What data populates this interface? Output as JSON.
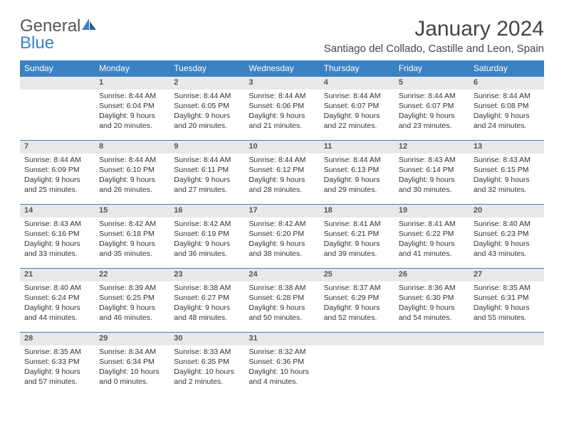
{
  "logo": {
    "part1": "General",
    "part2": "Blue"
  },
  "title": "January 2024",
  "location": "Santiago del Collado, Castille and Leon, Spain",
  "colors": {
    "header_bg": "#3b82c4",
    "header_text": "#ffffff",
    "daynum_bg": "#e8e8e8",
    "daynum_border": "#3b82c4",
    "text": "#333333",
    "logo_gray": "#555555",
    "logo_blue": "#3b82c4"
  },
  "typography": {
    "title_fontsize": 30,
    "location_fontsize": 15,
    "dayheader_fontsize": 12,
    "daynum_fontsize": 11,
    "cell_fontsize": 10.5
  },
  "days": [
    "Sunday",
    "Monday",
    "Tuesday",
    "Wednesday",
    "Thursday",
    "Friday",
    "Saturday"
  ],
  "weeks": [
    [
      {
        "n": "",
        "l1": "",
        "l2": "",
        "l3": "",
        "l4": ""
      },
      {
        "n": "1",
        "l1": "Sunrise: 8:44 AM",
        "l2": "Sunset: 6:04 PM",
        "l3": "Daylight: 9 hours",
        "l4": "and 20 minutes."
      },
      {
        "n": "2",
        "l1": "Sunrise: 8:44 AM",
        "l2": "Sunset: 6:05 PM",
        "l3": "Daylight: 9 hours",
        "l4": "and 20 minutes."
      },
      {
        "n": "3",
        "l1": "Sunrise: 8:44 AM",
        "l2": "Sunset: 6:06 PM",
        "l3": "Daylight: 9 hours",
        "l4": "and 21 minutes."
      },
      {
        "n": "4",
        "l1": "Sunrise: 8:44 AM",
        "l2": "Sunset: 6:07 PM",
        "l3": "Daylight: 9 hours",
        "l4": "and 22 minutes."
      },
      {
        "n": "5",
        "l1": "Sunrise: 8:44 AM",
        "l2": "Sunset: 6:07 PM",
        "l3": "Daylight: 9 hours",
        "l4": "and 23 minutes."
      },
      {
        "n": "6",
        "l1": "Sunrise: 8:44 AM",
        "l2": "Sunset: 6:08 PM",
        "l3": "Daylight: 9 hours",
        "l4": "and 24 minutes."
      }
    ],
    [
      {
        "n": "7",
        "l1": "Sunrise: 8:44 AM",
        "l2": "Sunset: 6:09 PM",
        "l3": "Daylight: 9 hours",
        "l4": "and 25 minutes."
      },
      {
        "n": "8",
        "l1": "Sunrise: 8:44 AM",
        "l2": "Sunset: 6:10 PM",
        "l3": "Daylight: 9 hours",
        "l4": "and 26 minutes."
      },
      {
        "n": "9",
        "l1": "Sunrise: 8:44 AM",
        "l2": "Sunset: 6:11 PM",
        "l3": "Daylight: 9 hours",
        "l4": "and 27 minutes."
      },
      {
        "n": "10",
        "l1": "Sunrise: 8:44 AM",
        "l2": "Sunset: 6:12 PM",
        "l3": "Daylight: 9 hours",
        "l4": "and 28 minutes."
      },
      {
        "n": "11",
        "l1": "Sunrise: 8:44 AM",
        "l2": "Sunset: 6:13 PM",
        "l3": "Daylight: 9 hours",
        "l4": "and 29 minutes."
      },
      {
        "n": "12",
        "l1": "Sunrise: 8:43 AM",
        "l2": "Sunset: 6:14 PM",
        "l3": "Daylight: 9 hours",
        "l4": "and 30 minutes."
      },
      {
        "n": "13",
        "l1": "Sunrise: 8:43 AM",
        "l2": "Sunset: 6:15 PM",
        "l3": "Daylight: 9 hours",
        "l4": "and 32 minutes."
      }
    ],
    [
      {
        "n": "14",
        "l1": "Sunrise: 8:43 AM",
        "l2": "Sunset: 6:16 PM",
        "l3": "Daylight: 9 hours",
        "l4": "and 33 minutes."
      },
      {
        "n": "15",
        "l1": "Sunrise: 8:42 AM",
        "l2": "Sunset: 6:18 PM",
        "l3": "Daylight: 9 hours",
        "l4": "and 35 minutes."
      },
      {
        "n": "16",
        "l1": "Sunrise: 8:42 AM",
        "l2": "Sunset: 6:19 PM",
        "l3": "Daylight: 9 hours",
        "l4": "and 36 minutes."
      },
      {
        "n": "17",
        "l1": "Sunrise: 8:42 AM",
        "l2": "Sunset: 6:20 PM",
        "l3": "Daylight: 9 hours",
        "l4": "and 38 minutes."
      },
      {
        "n": "18",
        "l1": "Sunrise: 8:41 AM",
        "l2": "Sunset: 6:21 PM",
        "l3": "Daylight: 9 hours",
        "l4": "and 39 minutes."
      },
      {
        "n": "19",
        "l1": "Sunrise: 8:41 AM",
        "l2": "Sunset: 6:22 PM",
        "l3": "Daylight: 9 hours",
        "l4": "and 41 minutes."
      },
      {
        "n": "20",
        "l1": "Sunrise: 8:40 AM",
        "l2": "Sunset: 6:23 PM",
        "l3": "Daylight: 9 hours",
        "l4": "and 43 minutes."
      }
    ],
    [
      {
        "n": "21",
        "l1": "Sunrise: 8:40 AM",
        "l2": "Sunset: 6:24 PM",
        "l3": "Daylight: 9 hours",
        "l4": "and 44 minutes."
      },
      {
        "n": "22",
        "l1": "Sunrise: 8:39 AM",
        "l2": "Sunset: 6:25 PM",
        "l3": "Daylight: 9 hours",
        "l4": "and 46 minutes."
      },
      {
        "n": "23",
        "l1": "Sunrise: 8:38 AM",
        "l2": "Sunset: 6:27 PM",
        "l3": "Daylight: 9 hours",
        "l4": "and 48 minutes."
      },
      {
        "n": "24",
        "l1": "Sunrise: 8:38 AM",
        "l2": "Sunset: 6:28 PM",
        "l3": "Daylight: 9 hours",
        "l4": "and 50 minutes."
      },
      {
        "n": "25",
        "l1": "Sunrise: 8:37 AM",
        "l2": "Sunset: 6:29 PM",
        "l3": "Daylight: 9 hours",
        "l4": "and 52 minutes."
      },
      {
        "n": "26",
        "l1": "Sunrise: 8:36 AM",
        "l2": "Sunset: 6:30 PM",
        "l3": "Daylight: 9 hours",
        "l4": "and 54 minutes."
      },
      {
        "n": "27",
        "l1": "Sunrise: 8:35 AM",
        "l2": "Sunset: 6:31 PM",
        "l3": "Daylight: 9 hours",
        "l4": "and 55 minutes."
      }
    ],
    [
      {
        "n": "28",
        "l1": "Sunrise: 8:35 AM",
        "l2": "Sunset: 6:33 PM",
        "l3": "Daylight: 9 hours",
        "l4": "and 57 minutes."
      },
      {
        "n": "29",
        "l1": "Sunrise: 8:34 AM",
        "l2": "Sunset: 6:34 PM",
        "l3": "Daylight: 10 hours",
        "l4": "and 0 minutes."
      },
      {
        "n": "30",
        "l1": "Sunrise: 8:33 AM",
        "l2": "Sunset: 6:35 PM",
        "l3": "Daylight: 10 hours",
        "l4": "and 2 minutes."
      },
      {
        "n": "31",
        "l1": "Sunrise: 8:32 AM",
        "l2": "Sunset: 6:36 PM",
        "l3": "Daylight: 10 hours",
        "l4": "and 4 minutes."
      },
      {
        "n": "",
        "l1": "",
        "l2": "",
        "l3": "",
        "l4": ""
      },
      {
        "n": "",
        "l1": "",
        "l2": "",
        "l3": "",
        "l4": ""
      },
      {
        "n": "",
        "l1": "",
        "l2": "",
        "l3": "",
        "l4": ""
      }
    ]
  ]
}
